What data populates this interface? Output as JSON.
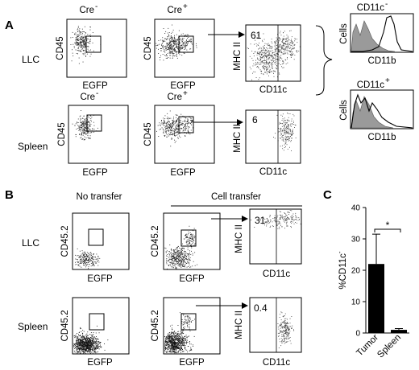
{
  "panels": {
    "A": {
      "label": "A",
      "rows": [
        "LLC",
        "Spleen"
      ],
      "col_headers": [
        "Cre",
        "Cre"
      ],
      "col_superscripts": [
        "-",
        "+"
      ],
      "x_label": "EGFP",
      "y_label": "CD45",
      "gated_x_label": "CD11c",
      "gated_y_label": "MHC II",
      "gated_percentages": [
        "61",
        "6"
      ],
      "histograms": [
        {
          "title": "CD11c",
          "title_superscript": "-",
          "x_label": "CD11b",
          "y_label": "Cells"
        },
        {
          "title": "CD11c",
          "title_superscript": "+",
          "x_label": "CD11b",
          "y_label": "Cells"
        }
      ]
    },
    "B": {
      "label": "B",
      "col_headers": [
        "No transfer",
        "Cell transfer"
      ],
      "rows": [
        "LLC",
        "Spleen"
      ],
      "x_label": "EGFP",
      "y_label": "CD45.2",
      "gated_x_label": "CD11c",
      "gated_y_label": "MHC II",
      "gated_percentages": [
        "31",
        "0.4"
      ]
    },
    "C": {
      "label": "C",
      "significance": "*"
    }
  },
  "chart_data": {
    "type": "bar",
    "categories": [
      "Tumor",
      "Spleen"
    ],
    "values": [
      22,
      1
    ],
    "errors": [
      9.5,
      0.4
    ],
    "ylabel": "%CD11c",
    "ylabel_superscript": "-",
    "yticks": [
      0,
      10,
      20,
      30,
      40
    ],
    "ylim": [
      0,
      40
    ],
    "bar_color": "#000000"
  }
}
